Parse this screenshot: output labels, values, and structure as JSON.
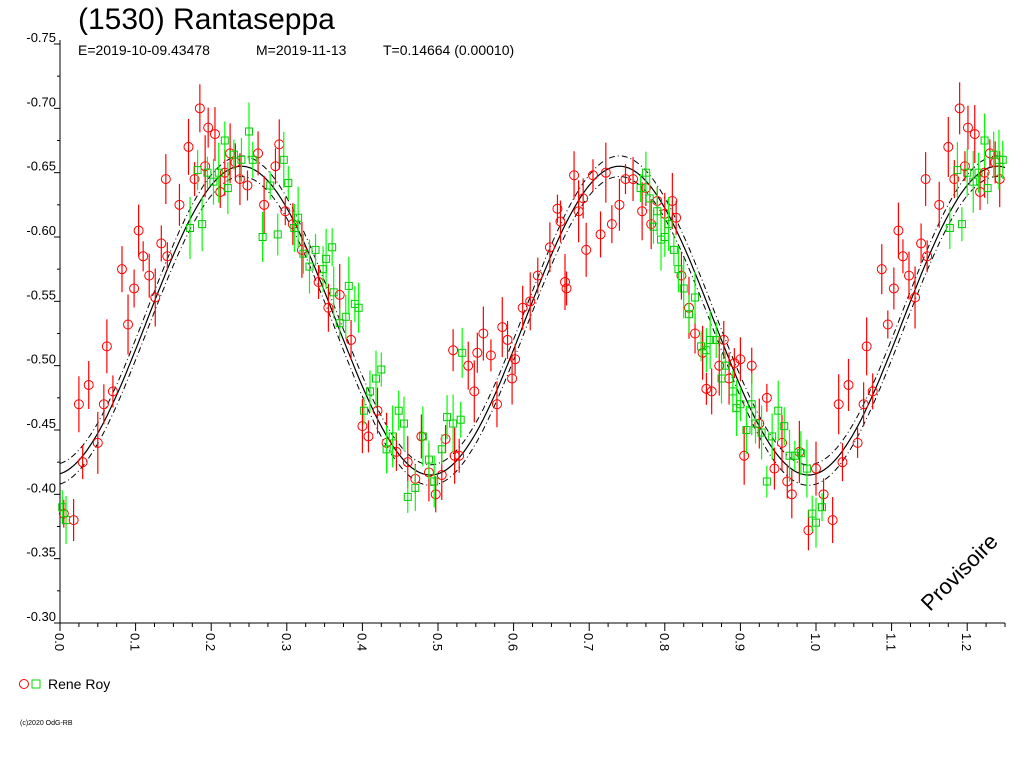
{
  "header": {
    "title": "(1530) Rantaseppa",
    "epoch": "E=2019-10-09.43478",
    "median": "M=2019-11-13",
    "period": "T=0.14664 (0.00010)"
  },
  "watermark": "Provisoire",
  "legend": {
    "observer": "Rene Roy"
  },
  "copyright": "(c)2020 OdG-RB",
  "colors": {
    "series1": "#ff0000",
    "series2": "#00ff00",
    "fit": "#000000"
  },
  "chart_data": {
    "type": "scatter",
    "xlabel": "",
    "ylabel": "",
    "xlim": [
      0.0,
      1.25
    ],
    "ylim": [
      -0.3,
      -0.75
    ],
    "y_inverted": true,
    "x_ticks": [
      "0.0",
      "0.1",
      "0.2",
      "0.3",
      "0.4",
      "0.5",
      "0.6",
      "0.7",
      "0.8",
      "0.9",
      "1.0",
      "1.1",
      "1.2"
    ],
    "y_ticks": [
      "-0.30",
      "-0.35",
      "-0.40",
      "-0.45",
      "-0.50",
      "-0.55",
      "-0.60",
      "-0.65",
      "-0.70",
      "-0.75"
    ],
    "fit": {
      "mean": -0.535,
      "amplitude": 0.12,
      "phase_of_max": 0.24,
      "harmonics": 2,
      "envelope": 0.008
    },
    "series": [
      {
        "name": "Rene Roy",
        "marker": "circle",
        "color": "#ff0000",
        "points": [
          [
            0.005,
            -0.385
          ],
          [
            0.018,
            -0.38
          ],
          [
            0.025,
            -0.47
          ],
          [
            0.03,
            -0.425
          ],
          [
            0.038,
            -0.485
          ],
          [
            0.05,
            -0.44
          ],
          [
            0.058,
            -0.47
          ],
          [
            0.062,
            -0.515
          ],
          [
            0.07,
            -0.48
          ],
          [
            0.082,
            -0.575
          ],
          [
            0.09,
            -0.532
          ],
          [
            0.098,
            -0.56
          ],
          [
            0.104,
            -0.605
          ],
          [
            0.11,
            -0.585
          ],
          [
            0.118,
            -0.57
          ],
          [
            0.126,
            -0.553
          ],
          [
            0.134,
            -0.595
          ],
          [
            0.14,
            -0.645
          ],
          [
            0.142,
            -0.585
          ],
          [
            0.158,
            -0.625
          ],
          [
            0.17,
            -0.67
          ],
          [
            0.178,
            -0.645
          ],
          [
            0.185,
            -0.7
          ],
          [
            0.192,
            -0.655
          ],
          [
            0.196,
            -0.685
          ],
          [
            0.205,
            -0.68
          ],
          [
            0.212,
            -0.635
          ],
          [
            0.218,
            -0.65
          ],
          [
            0.225,
            -0.665
          ],
          [
            0.232,
            -0.658
          ],
          [
            0.238,
            -0.645
          ],
          [
            0.248,
            -0.64
          ],
          [
            0.262,
            -0.665
          ],
          [
            0.27,
            -0.625
          ],
          [
            0.285,
            -0.655
          ],
          [
            0.29,
            -0.672
          ],
          [
            0.298,
            -0.62
          ],
          [
            0.308,
            -0.61
          ],
          [
            0.32,
            -0.59
          ],
          [
            0.342,
            -0.565
          ],
          [
            0.355,
            -0.545
          ],
          [
            0.37,
            -0.555
          ],
          [
            0.385,
            -0.52
          ],
          [
            0.4,
            -0.453
          ],
          [
            0.408,
            -0.445
          ],
          [
            0.42,
            -0.465
          ],
          [
            0.432,
            -0.44
          ],
          [
            0.445,
            -0.433
          ],
          [
            0.46,
            -0.425
          ],
          [
            0.47,
            -0.412
          ],
          [
            0.478,
            -0.445
          ],
          [
            0.488,
            -0.417
          ],
          [
            0.497,
            -0.4
          ],
          [
            0.505,
            -0.415
          ],
          [
            0.51,
            -0.443
          ],
          [
            0.52,
            -0.512
          ],
          [
            0.522,
            -0.43
          ],
          [
            0.528,
            -0.43
          ],
          [
            0.54,
            -0.5
          ],
          [
            0.548,
            -0.48
          ],
          [
            0.552,
            -0.51
          ],
          [
            0.56,
            -0.525
          ],
          [
            0.57,
            -0.508
          ],
          [
            0.578,
            -0.47
          ],
          [
            0.585,
            -0.53
          ],
          [
            0.592,
            -0.52
          ],
          [
            0.598,
            -0.49
          ],
          [
            0.602,
            -0.505
          ],
          [
            0.612,
            -0.545
          ],
          [
            0.622,
            -0.55
          ],
          [
            0.632,
            -0.57
          ],
          [
            0.648,
            -0.592
          ],
          [
            0.658,
            -0.622
          ],
          [
            0.662,
            -0.612
          ],
          [
            0.668,
            -0.565
          ],
          [
            0.67,
            -0.56
          ],
          [
            0.68,
            -0.648
          ],
          [
            0.686,
            -0.62
          ],
          [
            0.692,
            -0.63
          ],
          [
            0.696,
            -0.59
          ],
          [
            0.705,
            -0.648
          ],
          [
            0.715,
            -0.602
          ],
          [
            0.722,
            -0.65
          ],
          [
            0.73,
            -0.61
          ],
          [
            0.74,
            -0.625
          ],
          [
            0.748,
            -0.645
          ],
          [
            0.758,
            -0.645
          ],
          [
            0.77,
            -0.62
          ],
          [
            0.775,
            -0.638
          ],
          [
            0.782,
            -0.61
          ],
          [
            0.79,
            -0.628
          ],
          [
            0.8,
            -0.618
          ],
          [
            0.81,
            -0.628
          ],
          [
            0.815,
            -0.615
          ],
          [
            0.822,
            -0.57
          ],
          [
            0.832,
            -0.545
          ],
          [
            0.84,
            -0.525
          ],
          [
            0.85,
            -0.51
          ],
          [
            0.855,
            -0.482
          ],
          [
            0.862,
            -0.48
          ],
          [
            0.872,
            -0.5
          ],
          [
            0.878,
            -0.52
          ],
          [
            0.885,
            -0.49
          ],
          [
            0.892,
            -0.502
          ],
          [
            0.9,
            -0.505
          ],
          [
            0.905,
            -0.43
          ],
          [
            0.915,
            -0.5
          ],
          [
            0.925,
            -0.455
          ],
          [
            0.935,
            -0.475
          ],
          [
            0.945,
            -0.42
          ],
          [
            0.955,
            -0.44
          ],
          [
            0.962,
            -0.41
          ],
          [
            0.968,
            -0.4
          ],
          [
            0.978,
            -0.433
          ],
          [
            0.99,
            -0.372
          ],
          [
            1.0,
            -0.42
          ],
          [
            1.01,
            -0.4
          ],
          [
            1.022,
            -0.38
          ],
          [
            1.03,
            -0.47
          ],
          [
            1.035,
            -0.425
          ],
          [
            1.043,
            -0.485
          ],
          [
            1.055,
            -0.44
          ],
          [
            1.063,
            -0.47
          ],
          [
            1.067,
            -0.515
          ],
          [
            1.075,
            -0.48
          ],
          [
            1.087,
            -0.575
          ],
          [
            1.095,
            -0.532
          ],
          [
            1.103,
            -0.56
          ],
          [
            1.109,
            -0.605
          ],
          [
            1.115,
            -0.585
          ],
          [
            1.123,
            -0.57
          ],
          [
            1.131,
            -0.553
          ],
          [
            1.139,
            -0.595
          ],
          [
            1.145,
            -0.645
          ],
          [
            1.147,
            -0.585
          ],
          [
            1.163,
            -0.625
          ],
          [
            1.175,
            -0.67
          ],
          [
            1.183,
            -0.645
          ],
          [
            1.19,
            -0.7
          ],
          [
            1.197,
            -0.655
          ],
          [
            1.201,
            -0.685
          ],
          [
            1.21,
            -0.68
          ],
          [
            1.217,
            -0.635
          ],
          [
            1.223,
            -0.65
          ],
          [
            1.23,
            -0.665
          ],
          [
            1.237,
            -0.658
          ],
          [
            1.243,
            -0.645
          ]
        ]
      },
      {
        "name": "Rene Roy",
        "marker": "square",
        "color": "#00ff00",
        "points": [
          [
            0.003,
            -0.39
          ],
          [
            0.008,
            -0.38
          ],
          [
            0.172,
            -0.607
          ],
          [
            0.182,
            -0.652
          ],
          [
            0.188,
            -0.61
          ],
          [
            0.195,
            -0.65
          ],
          [
            0.203,
            -0.643
          ],
          [
            0.21,
            -0.65
          ],
          [
            0.218,
            -0.675
          ],
          [
            0.222,
            -0.638
          ],
          [
            0.23,
            -0.664
          ],
          [
            0.24,
            -0.66
          ],
          [
            0.25,
            -0.682
          ],
          [
            0.255,
            -0.66
          ],
          [
            0.268,
            -0.6
          ],
          [
            0.278,
            -0.64
          ],
          [
            0.288,
            -0.602
          ],
          [
            0.296,
            -0.66
          ],
          [
            0.302,
            -0.642
          ],
          [
            0.31,
            -0.607
          ],
          [
            0.315,
            -0.615
          ],
          [
            0.322,
            -0.587
          ],
          [
            0.33,
            -0.577
          ],
          [
            0.338,
            -0.59
          ],
          [
            0.348,
            -0.575
          ],
          [
            0.352,
            -0.583
          ],
          [
            0.36,
            -0.592
          ],
          [
            0.362,
            -0.557
          ],
          [
            0.37,
            -0.533
          ],
          [
            0.378,
            -0.538
          ],
          [
            0.382,
            -0.562
          ],
          [
            0.39,
            -0.548
          ],
          [
            0.395,
            -0.545
          ],
          [
            0.402,
            -0.465
          ],
          [
            0.41,
            -0.48
          ],
          [
            0.418,
            -0.49
          ],
          [
            0.425,
            -0.497
          ],
          [
            0.432,
            -0.435
          ],
          [
            0.44,
            -0.445
          ],
          [
            0.448,
            -0.465
          ],
          [
            0.455,
            -0.455
          ],
          [
            0.46,
            -0.398
          ],
          [
            0.47,
            -0.405
          ],
          [
            0.48,
            -0.445
          ],
          [
            0.488,
            -0.427
          ],
          [
            0.495,
            -0.41
          ],
          [
            0.505,
            -0.435
          ],
          [
            0.512,
            -0.46
          ],
          [
            0.52,
            -0.455
          ],
          [
            0.53,
            -0.458
          ],
          [
            0.532,
            -0.51
          ],
          [
            0.768,
            -0.638
          ],
          [
            0.775,
            -0.65
          ],
          [
            0.78,
            -0.63
          ],
          [
            0.785,
            -0.608
          ],
          [
            0.79,
            -0.62
          ],
          [
            0.795,
            -0.598
          ],
          [
            0.8,
            -0.6
          ],
          [
            0.805,
            -0.61
          ],
          [
            0.812,
            -0.59
          ],
          [
            0.818,
            -0.575
          ],
          [
            0.825,
            -0.56
          ],
          [
            0.832,
            -0.54
          ],
          [
            0.84,
            -0.553
          ],
          [
            0.848,
            -0.515
          ],
          [
            0.855,
            -0.512
          ],
          [
            0.86,
            -0.52
          ],
          [
            0.868,
            -0.52
          ],
          [
            0.875,
            -0.49
          ],
          [
            0.88,
            -0.5
          ],
          [
            0.89,
            -0.48
          ],
          [
            0.895,
            -0.467
          ],
          [
            0.9,
            -0.47
          ],
          [
            0.908,
            -0.45
          ],
          [
            0.915,
            -0.47
          ],
          [
            0.92,
            -0.455
          ],
          [
            0.928,
            -0.448
          ],
          [
            0.935,
            -0.41
          ],
          [
            0.942,
            -0.445
          ],
          [
            0.95,
            -0.465
          ],
          [
            0.958,
            -0.453
          ],
          [
            0.965,
            -0.43
          ],
          [
            0.972,
            -0.43
          ],
          [
            0.98,
            -0.432
          ],
          [
            0.988,
            -0.42
          ],
          [
            0.995,
            -0.385
          ],
          [
            1.0,
            -0.378
          ],
          [
            1.008,
            -0.39
          ],
          [
            1.177,
            -0.607
          ],
          [
            1.187,
            -0.652
          ],
          [
            1.193,
            -0.61
          ],
          [
            1.2,
            -0.65
          ],
          [
            1.208,
            -0.643
          ],
          [
            1.215,
            -0.65
          ],
          [
            1.223,
            -0.675
          ],
          [
            1.227,
            -0.638
          ],
          [
            1.235,
            -0.664
          ],
          [
            1.242,
            -0.66
          ],
          [
            1.247,
            -0.66
          ]
        ]
      }
    ]
  }
}
